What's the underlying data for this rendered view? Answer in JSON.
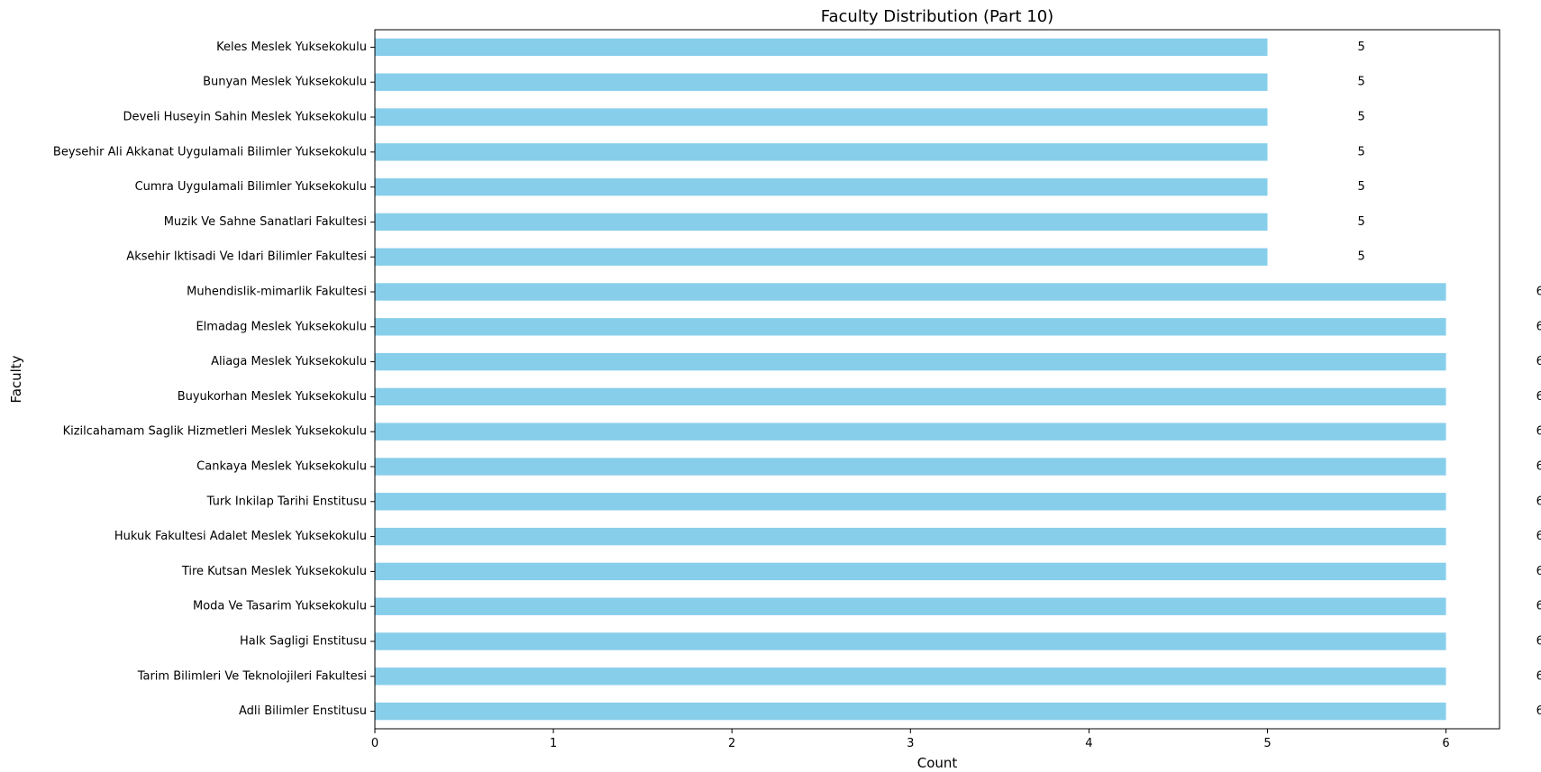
{
  "chart_data": {
    "type": "bar",
    "orientation": "horizontal",
    "title": "Faculty Distribution (Part 10)",
    "xlabel": "Count",
    "ylabel": "Faculty",
    "xlim": [
      0,
      6.3
    ],
    "x_ticks": [
      0,
      1,
      2,
      3,
      4,
      5,
      6
    ],
    "grid": false,
    "bar_color": "#87CEEB",
    "categories": [
      "Keles Meslek Yuksekokulu",
      "Bunyan Meslek Yuksekokulu",
      "Develi Huseyin Sahin Meslek Yuksekokulu",
      "Beysehir Ali Akkanat Uygulamali Bilimler Yuksekokulu",
      "Cumra Uygulamali Bilimler Yuksekokulu",
      "Muzik Ve Sahne Sanatlari Fakultesi",
      "Aksehir Iktisadi Ve Idari Bilimler Fakultesi",
      "Muhendislik-mimarlik Fakultesi",
      "Elmadag Meslek Yuksekokulu",
      "Aliaga Meslek Yuksekokulu",
      "Buyukorhan Meslek Yuksekokulu",
      "Kizilcahamam Saglik Hizmetleri Meslek Yuksekokulu",
      "Cankaya Meslek Yuksekokulu",
      "Turk Inkilap Tarihi Enstitusu",
      "Hukuk Fakultesi Adalet Meslek Yuksekokulu",
      "Tire Kutsan Meslek Yuksekokulu",
      "Moda Ve Tasarim Yuksekokulu",
      "Halk Sagligi Enstitusu",
      "Tarim Bilimleri Ve Teknolojileri Fakultesi",
      "Adli Bilimler Enstitusu"
    ],
    "values": [
      5,
      5,
      5,
      5,
      5,
      5,
      5,
      6,
      6,
      6,
      6,
      6,
      6,
      6,
      6,
      6,
      6,
      6,
      6,
      6
    ]
  }
}
